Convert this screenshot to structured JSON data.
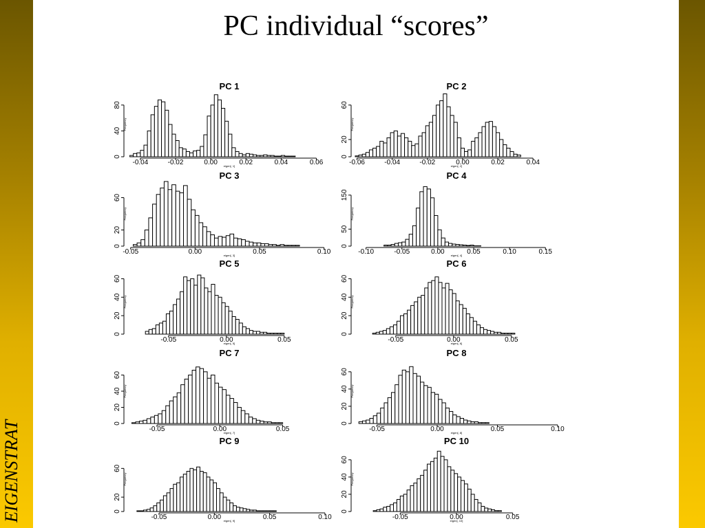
{
  "slide": {
    "title": "PC individual “scores”",
    "brand": "EIGENSTRAT",
    "colors": {
      "band_top": "#6b5600",
      "band_bottom": "#fbc900",
      "bars": "#000000"
    }
  },
  "chart_data": [
    {
      "type": "bar",
      "title": "PC 1",
      "xlabel": "eigen[, 1]",
      "ylabel": "Frequency",
      "xticks": [
        "-0.04",
        "-0.02",
        "0.00",
        "0.02",
        "0.04",
        "0.06"
      ],
      "xtick_values": [
        -0.04,
        -0.02,
        0.0,
        0.02,
        0.04,
        0.06
      ],
      "yticks": [
        "0",
        "40",
        "80"
      ],
      "ytick_values": [
        0,
        40,
        80
      ],
      "xlim": [
        -0.047,
        0.068
      ],
      "ylim": [
        0,
        100
      ],
      "bins": {
        "start": -0.046,
        "width": 0.002,
        "counts": [
          2,
          5,
          6,
          10,
          18,
          40,
          65,
          78,
          88,
          85,
          72,
          50,
          35,
          25,
          14,
          12,
          8,
          6,
          9,
          10,
          16,
          34,
          63,
          80,
          96,
          88,
          75,
          55,
          35,
          14,
          8,
          5,
          3,
          5,
          4,
          3,
          2,
          2,
          3,
          2,
          2,
          1,
          1,
          2,
          1,
          1,
          1
        ]
      }
    },
    {
      "type": "bar",
      "title": "PC 2",
      "xlabel": "eigen[, 2]",
      "ylabel": "Frequency",
      "xticks": [
        "-0.06",
        "-0.04",
        "-0.02",
        "0.00",
        "0.02",
        "0.04"
      ],
      "xtick_values": [
        -0.06,
        -0.04,
        -0.02,
        0.0,
        0.02,
        0.04
      ],
      "yticks": [
        "0",
        "20",
        "60"
      ],
      "ytick_values": [
        0,
        20,
        60
      ],
      "xlim": [
        -0.061,
        0.054
      ],
      "ylim": [
        0,
        75
      ],
      "bins": {
        "start": -0.061,
        "width": 0.002,
        "counts": [
          1,
          2,
          3,
          5,
          8,
          10,
          12,
          18,
          16,
          22,
          28,
          30,
          24,
          27,
          22,
          18,
          13,
          15,
          24,
          28,
          36,
          40,
          48,
          60,
          65,
          73,
          58,
          48,
          40,
          22,
          10,
          6,
          8,
          18,
          22,
          28,
          35,
          40,
          41,
          35,
          28,
          20,
          14,
          10,
          6,
          3,
          2
        ]
      }
    },
    {
      "type": "bar",
      "title": "PC 3",
      "xlabel": "eigen[, 3]",
      "ylabel": "Frequency",
      "xticks": [
        "-0.05",
        "0.00",
        "0.05",
        "0.10"
      ],
      "xtick_values": [
        -0.05,
        0.0,
        0.05,
        0.1
      ],
      "yticks": [
        "0",
        "20",
        "60"
      ],
      "ytick_values": [
        0,
        20,
        60
      ],
      "xlim": [
        -0.052,
        0.105
      ],
      "ylim": [
        0,
        80
      ],
      "bins": {
        "start": -0.048,
        "width": 0.003,
        "counts": [
          2,
          4,
          8,
          20,
          35,
          52,
          64,
          72,
          80,
          70,
          76,
          68,
          66,
          75,
          58,
          45,
          38,
          29,
          24,
          18,
          14,
          10,
          12,
          11,
          13,
          15,
          10,
          9,
          8,
          6,
          5,
          4,
          4,
          3,
          3,
          2,
          2,
          1,
          2,
          1,
          1,
          1,
          1
        ]
      }
    },
    {
      "type": "bar",
      "title": "PC 4",
      "xlabel": "eigen[, 4]",
      "ylabel": "Frequency",
      "xticks": [
        "-0.10",
        "-0.05",
        "0.00",
        "0.05",
        "0.10",
        "0.15"
      ],
      "xtick_values": [
        -0.1,
        -0.05,
        0.0,
        0.05,
        0.1,
        0.15
      ],
      "yticks": [
        "0",
        "50",
        "150"
      ],
      "ytick_values": [
        0,
        50,
        150
      ],
      "xlim": [
        -0.115,
        0.167
      ],
      "ylim": [
        0,
        190
      ],
      "bins": {
        "start": -0.075,
        "width": 0.005,
        "counts": [
          3,
          3,
          5,
          8,
          10,
          12,
          20,
          35,
          60,
          112,
          160,
          175,
          168,
          142,
          90,
          48,
          24,
          12,
          8,
          6,
          5,
          4,
          3,
          2,
          3,
          1,
          1
        ]
      }
    },
    {
      "type": "bar",
      "title": "PC 5",
      "xlabel": "eigen[, 5]",
      "ylabel": "Frequency",
      "xticks": [
        "-0.05",
        "0.00",
        "0.05"
      ],
      "xtick_values": [
        -0.05,
        0.0,
        0.05
      ],
      "yticks": [
        "0",
        "20",
        "40",
        "60"
      ],
      "ytick_values": [
        0,
        20,
        40,
        60
      ],
      "xlim": [
        -0.085,
        0.09
      ],
      "ylim": [
        0,
        70
      ],
      "bins": {
        "start": -0.07,
        "width": 0.003,
        "counts": [
          3,
          5,
          6,
          10,
          12,
          14,
          22,
          25,
          32,
          38,
          46,
          62,
          58,
          60,
          53,
          64,
          61,
          50,
          46,
          54,
          42,
          40,
          34,
          30,
          25,
          19,
          16,
          12,
          8,
          6,
          4,
          3,
          3,
          2,
          2,
          1,
          1,
          1,
          1,
          1
        ]
      }
    },
    {
      "type": "bar",
      "title": "PC 6",
      "xlabel": "eigen[, 6]",
      "ylabel": "Frequency",
      "xticks": [
        "-0.05",
        "0.00",
        "0.05"
      ],
      "xtick_values": [
        -0.05,
        0.0,
        0.05
      ],
      "yticks": [
        "0",
        "20",
        "40",
        "60"
      ],
      "ytick_values": [
        0,
        20,
        40,
        60
      ],
      "xlim": [
        -0.085,
        0.09
      ],
      "ylim": [
        0,
        70
      ],
      "bins": {
        "start": -0.07,
        "width": 0.003,
        "counts": [
          1,
          2,
          3,
          4,
          6,
          8,
          10,
          14,
          20,
          22,
          26,
          31,
          35,
          40,
          42,
          50,
          56,
          58,
          62,
          56,
          50,
          55,
          48,
          44,
          36,
          32,
          28,
          22,
          18,
          14,
          10,
          7,
          5,
          4,
          3,
          2,
          2,
          1,
          1,
          1,
          1
        ]
      }
    },
    {
      "type": "bar",
      "title": "PC 7",
      "xlabel": "eigen[, 7]",
      "ylabel": "Frequency",
      "xticks": [
        "-0.05",
        "0.00",
        "0.05"
      ],
      "xtick_values": [
        -0.05,
        0.0,
        0.05
      ],
      "yticks": [
        "0",
        "20",
        "40",
        "60"
      ],
      "ytick_values": [
        0,
        20,
        40,
        60
      ],
      "xlim": [
        -0.073,
        0.088
      ],
      "ylim": [
        0,
        80
      ],
      "bins": {
        "start": -0.07,
        "width": 0.003,
        "counts": [
          1,
          2,
          3,
          4,
          6,
          8,
          10,
          12,
          16,
          22,
          28,
          33,
          38,
          48,
          55,
          60,
          66,
          70,
          68,
          64,
          56,
          60,
          50,
          45,
          42,
          35,
          31,
          26,
          20,
          16,
          12,
          8,
          6,
          4,
          3,
          2,
          2,
          1,
          1,
          1
        ]
      }
    },
    {
      "type": "bar",
      "title": "PC 8",
      "xlabel": "eigen[, 8]",
      "ylabel": "Frequency",
      "xticks": [
        "-0.05",
        "0.00",
        "0.05",
        "0.10"
      ],
      "xtick_values": [
        -0.05,
        0.0,
        0.05,
        0.1
      ],
      "yticks": [
        "0",
        "20",
        "40",
        "60"
      ],
      "ytick_values": [
        0,
        20,
        40,
        60
      ],
      "xlim": [
        -0.068,
        0.1
      ],
      "ylim": [
        0,
        75
      ],
      "bins": {
        "start": -0.065,
        "width": 0.003,
        "counts": [
          2,
          3,
          4,
          6,
          9,
          12,
          18,
          24,
          30,
          36,
          45,
          56,
          62,
          60,
          66,
          58,
          55,
          48,
          44,
          42,
          36,
          34,
          28,
          24,
          18,
          14,
          10,
          8,
          6,
          4,
          3,
          2,
          2,
          1,
          1,
          1
        ]
      }
    },
    {
      "type": "bar",
      "title": "PC 9",
      "xlabel": "eigen[, 9]",
      "ylabel": "Frequency",
      "xticks": [
        "-0.05",
        "0.00",
        "0.05",
        "0.10"
      ],
      "xtick_values": [
        -0.05,
        0.0,
        0.05,
        0.1
      ],
      "yticks": [
        "0",
        "20",
        "60"
      ],
      "ytick_values": [
        0,
        20,
        60
      ],
      "xlim": [
        -0.078,
        0.105
      ],
      "ylim": [
        0,
        90
      ],
      "bins": {
        "start": -0.07,
        "width": 0.003,
        "counts": [
          1,
          1,
          2,
          3,
          5,
          8,
          12,
          16,
          22,
          26,
          32,
          38,
          40,
          48,
          52,
          56,
          60,
          58,
          62,
          56,
          54,
          48,
          44,
          40,
          32,
          26,
          20,
          16,
          12,
          8,
          6,
          5,
          4,
          3,
          2,
          2,
          1,
          1,
          1,
          1,
          1,
          1
        ]
      }
    },
    {
      "type": "bar",
      "title": "PC 10",
      "xlabel": "eigen[, 10]",
      "ylabel": "Frequency",
      "xticks": [
        "-0.05",
        "0.00",
        "0.05"
      ],
      "xtick_values": [
        -0.05,
        0.0,
        0.05
      ],
      "yticks": [
        "0",
        "20",
        "40",
        "60"
      ],
      "ytick_values": [
        0,
        20,
        40,
        60
      ],
      "xlim": [
        -0.09,
        0.09
      ],
      "ylim": [
        0,
        75
      ],
      "bins": {
        "start": -0.074,
        "width": 0.003,
        "counts": [
          1,
          2,
          3,
          5,
          6,
          8,
          10,
          14,
          18,
          20,
          25,
          30,
          33,
          38,
          42,
          48,
          55,
          58,
          62,
          70,
          64,
          60,
          52,
          48,
          44,
          40,
          36,
          32,
          26,
          20,
          14,
          10,
          6,
          4,
          3,
          2,
          1,
          1
        ]
      }
    }
  ]
}
